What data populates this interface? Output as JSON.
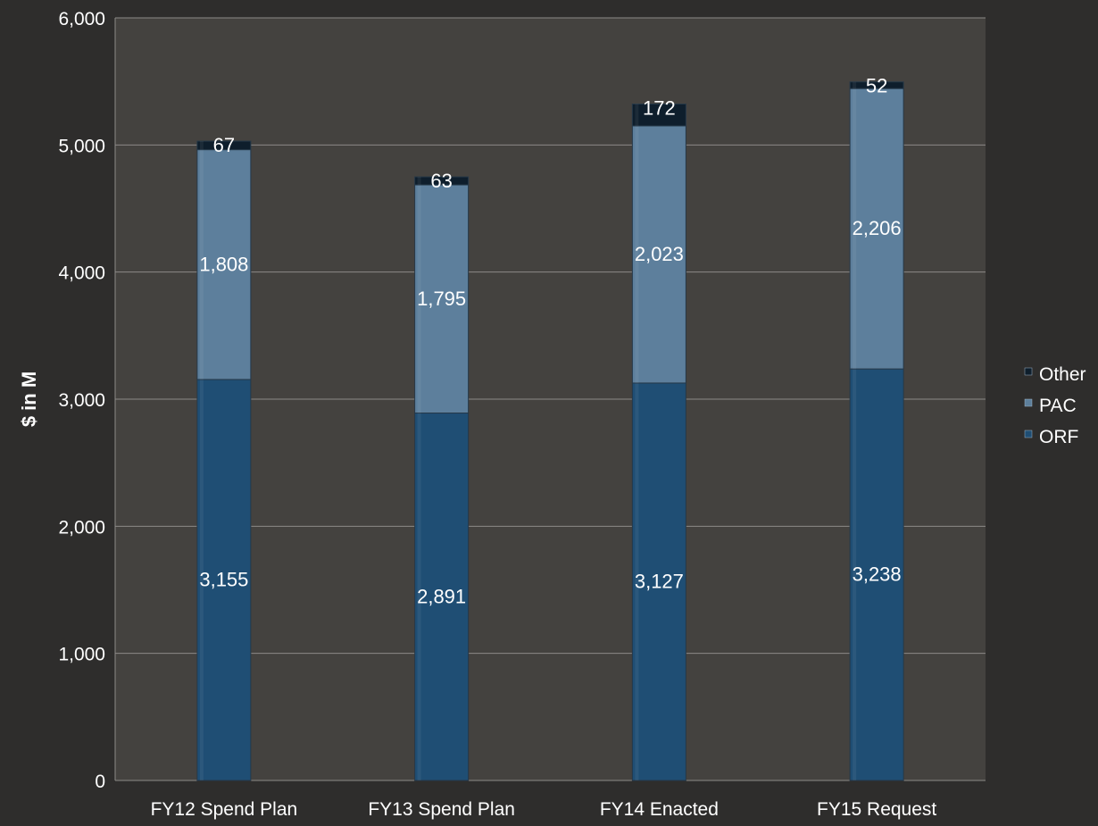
{
  "chart_data": {
    "type": "bar",
    "stacked": true,
    "categories": [
      "FY12 Spend Plan",
      "FY13 Spend Plan",
      "FY14 Enacted",
      "FY15 Request"
    ],
    "series": [
      {
        "name": "ORF",
        "values": [
          3155,
          2891,
          3127,
          3238
        ],
        "labels": [
          "3,155",
          "2,891",
          "3,127",
          "3,238"
        ],
        "color": "#1f4e74"
      },
      {
        "name": "PAC",
        "values": [
          1808,
          1795,
          2023,
          2206
        ],
        "labels": [
          "1,808",
          "1,795",
          "2,023",
          "2,206"
        ],
        "color": "#5d7f9c"
      },
      {
        "name": "Other",
        "values": [
          67,
          63,
          172,
          52
        ],
        "labels": [
          "67",
          "63",
          "172",
          "52"
        ],
        "color": "#0e1e2c"
      }
    ],
    "xlabel": "",
    "ylabel": "$ in M",
    "ylim": [
      0,
      6000
    ],
    "yticks": [
      0,
      1000,
      2000,
      3000,
      4000,
      5000,
      6000
    ],
    "ytick_labels": [
      "0",
      "1,000",
      "2,000",
      "3,000",
      "4,000",
      "5,000",
      "6,000"
    ],
    "grid": true,
    "legend_position": "right",
    "legend_order": [
      "Other",
      "PAC",
      "ORF"
    ],
    "colors": {
      "page_background": "#2e2d2c",
      "plot_background": "#44423f",
      "gridline": "#8c8a87",
      "text": "#ffffff"
    }
  }
}
